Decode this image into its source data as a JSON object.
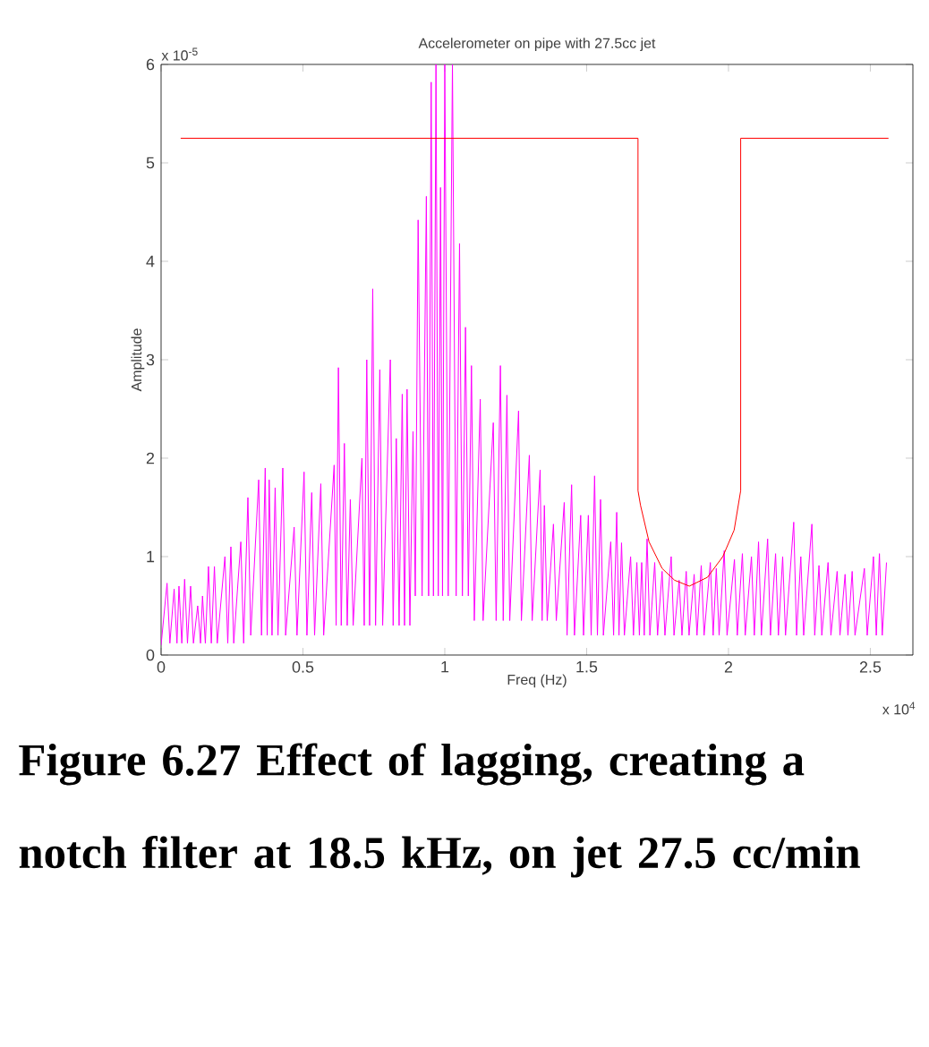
{
  "chart_data": {
    "type": "line",
    "title": "Accelerometer on pipe with 27.5cc jet",
    "xlabel": "Freq (Hz)",
    "ylabel": "Amplitude",
    "xlim": [
      0,
      2.65
    ],
    "ylim": [
      0,
      6
    ],
    "xticks": [
      0,
      0.5,
      1,
      1.5,
      2,
      2.5
    ],
    "yticks": [
      0,
      1,
      2,
      3,
      4,
      5,
      6
    ],
    "grid": false,
    "marker": "none",
    "line_style": "solid",
    "series": [
      {
        "color": "#ff00ff",
        "x": [
          0,
          0.021,
          0.031,
          0.046,
          0.056,
          0.063,
          0.073,
          0.083,
          0.093,
          0.104,
          0.114,
          0.129,
          0.139,
          0.146,
          0.156,
          0.167,
          0.177,
          0.188,
          0.198,
          0.225,
          0.235,
          0.246,
          0.256,
          0.281,
          0.291,
          0.306,
          0.316,
          0.344,
          0.354,
          0.367,
          0.374,
          0.381,
          0.391,
          0.402,
          0.412,
          0.429,
          0.439,
          0.469,
          0.479,
          0.504,
          0.514,
          0.531,
          0.541,
          0.563,
          0.573,
          0.61,
          0.617,
          0.625,
          0.635,
          0.646,
          0.656,
          0.667,
          0.677,
          0.708,
          0.716,
          0.725,
          0.735,
          0.746,
          0.756,
          0.771,
          0.781,
          0.808,
          0.818,
          0.829,
          0.839,
          0.85,
          0.858,
          0.867,
          0.877,
          0.888,
          0.896,
          0.906,
          0.92,
          0.935,
          0.943,
          0.952,
          0.96,
          0.969,
          0.977,
          0.985,
          0.992,
          1.0,
          1.012,
          1.027,
          1.04,
          1.052,
          1.062,
          1.073,
          1.083,
          1.094,
          1.104,
          1.125,
          1.135,
          1.171,
          1.181,
          1.196,
          1.206,
          1.219,
          1.229,
          1.26,
          1.27,
          1.298,
          1.308,
          1.336,
          1.343,
          1.351,
          1.361,
          1.383,
          1.393,
          1.421,
          1.431,
          1.447,
          1.457,
          1.479,
          1.489,
          1.506,
          1.516,
          1.528,
          1.538,
          1.549,
          1.559,
          1.585,
          1.595,
          1.606,
          1.614,
          1.623,
          1.633,
          1.655,
          1.665,
          1.677,
          1.686,
          1.694,
          1.703,
          1.713,
          1.723,
          1.74,
          1.75,
          1.766,
          1.776,
          1.798,
          1.808,
          1.826,
          1.836,
          1.851,
          1.861,
          1.879,
          1.889,
          1.904,
          1.914,
          1.936,
          1.946,
          1.957,
          1.967,
          1.985,
          1.995,
          2.021,
          2.031,
          2.049,
          2.059,
          2.081,
          2.091,
          2.106,
          2.116,
          2.138,
          2.148,
          2.166,
          2.176,
          2.191,
          2.201,
          2.23,
          2.24,
          2.255,
          2.265,
          2.294,
          2.304,
          2.319,
          2.329,
          2.351,
          2.361,
          2.383,
          2.393,
          2.411,
          2.421,
          2.436,
          2.446,
          2.479,
          2.489,
          2.511,
          2.521,
          2.532,
          2.542,
          2.557
        ],
        "values": [
          0.1,
          0.73,
          0.12,
          0.67,
          0.12,
          0.7,
          0.12,
          0.77,
          0.12,
          0.7,
          0.12,
          0.5,
          0.12,
          0.6,
          0.12,
          0.9,
          0.12,
          0.9,
          0.12,
          1.0,
          0.12,
          1.1,
          0.12,
          1.15,
          0.12,
          1.6,
          0.2,
          1.78,
          0.2,
          1.9,
          0.2,
          1.78,
          0.2,
          1.7,
          0.2,
          1.9,
          0.2,
          1.3,
          0.2,
          1.86,
          0.2,
          1.65,
          0.2,
          1.74,
          0.2,
          1.93,
          0.3,
          2.92,
          0.3,
          2.15,
          0.3,
          1.58,
          0.3,
          2.0,
          0.3,
          3.0,
          0.3,
          3.72,
          0.3,
          2.9,
          0.3,
          3.0,
          0.3,
          2.2,
          0.3,
          2.65,
          0.3,
          2.7,
          0.3,
          2.27,
          0.6,
          4.42,
          0.6,
          4.66,
          0.6,
          5.82,
          0.6,
          6,
          0.6,
          4.75,
          0.6,
          6,
          0.6,
          6,
          0.6,
          4.18,
          0.6,
          3.33,
          0.6,
          2.94,
          0.35,
          2.6,
          0.35,
          2.36,
          0.35,
          2.94,
          0.35,
          2.64,
          0.35,
          2.48,
          0.35,
          2.03,
          0.35,
          1.88,
          0.35,
          1.52,
          0.35,
          1.33,
          0.35,
          1.55,
          0.2,
          1.73,
          0.2,
          1.42,
          0.2,
          1.42,
          0.2,
          1.82,
          0.2,
          1.58,
          0.2,
          1.15,
          0.2,
          1.45,
          0.2,
          1.14,
          0.2,
          1.0,
          0.2,
          0.94,
          0.2,
          0.94,
          0.2,
          1.18,
          0.2,
          0.94,
          0.2,
          0.85,
          0.2,
          1.0,
          0.2,
          0.76,
          0.2,
          0.85,
          0.2,
          0.82,
          0.2,
          0.91,
          0.2,
          0.94,
          0.2,
          0.88,
          0.2,
          1.06,
          0.2,
          0.97,
          0.2,
          1.03,
          0.2,
          1.0,
          0.2,
          1.15,
          0.2,
          1.18,
          0.2,
          1.03,
          0.2,
          1.0,
          0.2,
          1.35,
          0.2,
          1.0,
          0.2,
          1.33,
          0.2,
          0.91,
          0.2,
          0.94,
          0.2,
          0.85,
          0.2,
          0.82,
          0.2,
          0.85,
          0.2,
          0.88,
          0.2,
          1.0,
          0.2,
          1.03,
          0.2,
          0.94
        ]
      },
      {
        "color": "#ff0000",
        "x": [
          0.069,
          1.681,
          1.681,
          1.69,
          1.72,
          1.766,
          1.81,
          1.862,
          1.926,
          1.98,
          2.02,
          2.043,
          2.043,
          2.564
        ],
        "values": [
          5.25,
          5.25,
          1.67,
          1.52,
          1.15,
          0.88,
          0.76,
          0.7,
          0.79,
          1.0,
          1.27,
          1.67,
          5.25,
          5.25
        ]
      }
    ],
    "annotations": [
      "x 10$^{-5}$",
      "x 10$^{4}$",
      "Figure 6.27 Effect of lagging, creating a notch filter at 18.5 kHz, on jet 27.5 cc/min"
    ]
  }
}
